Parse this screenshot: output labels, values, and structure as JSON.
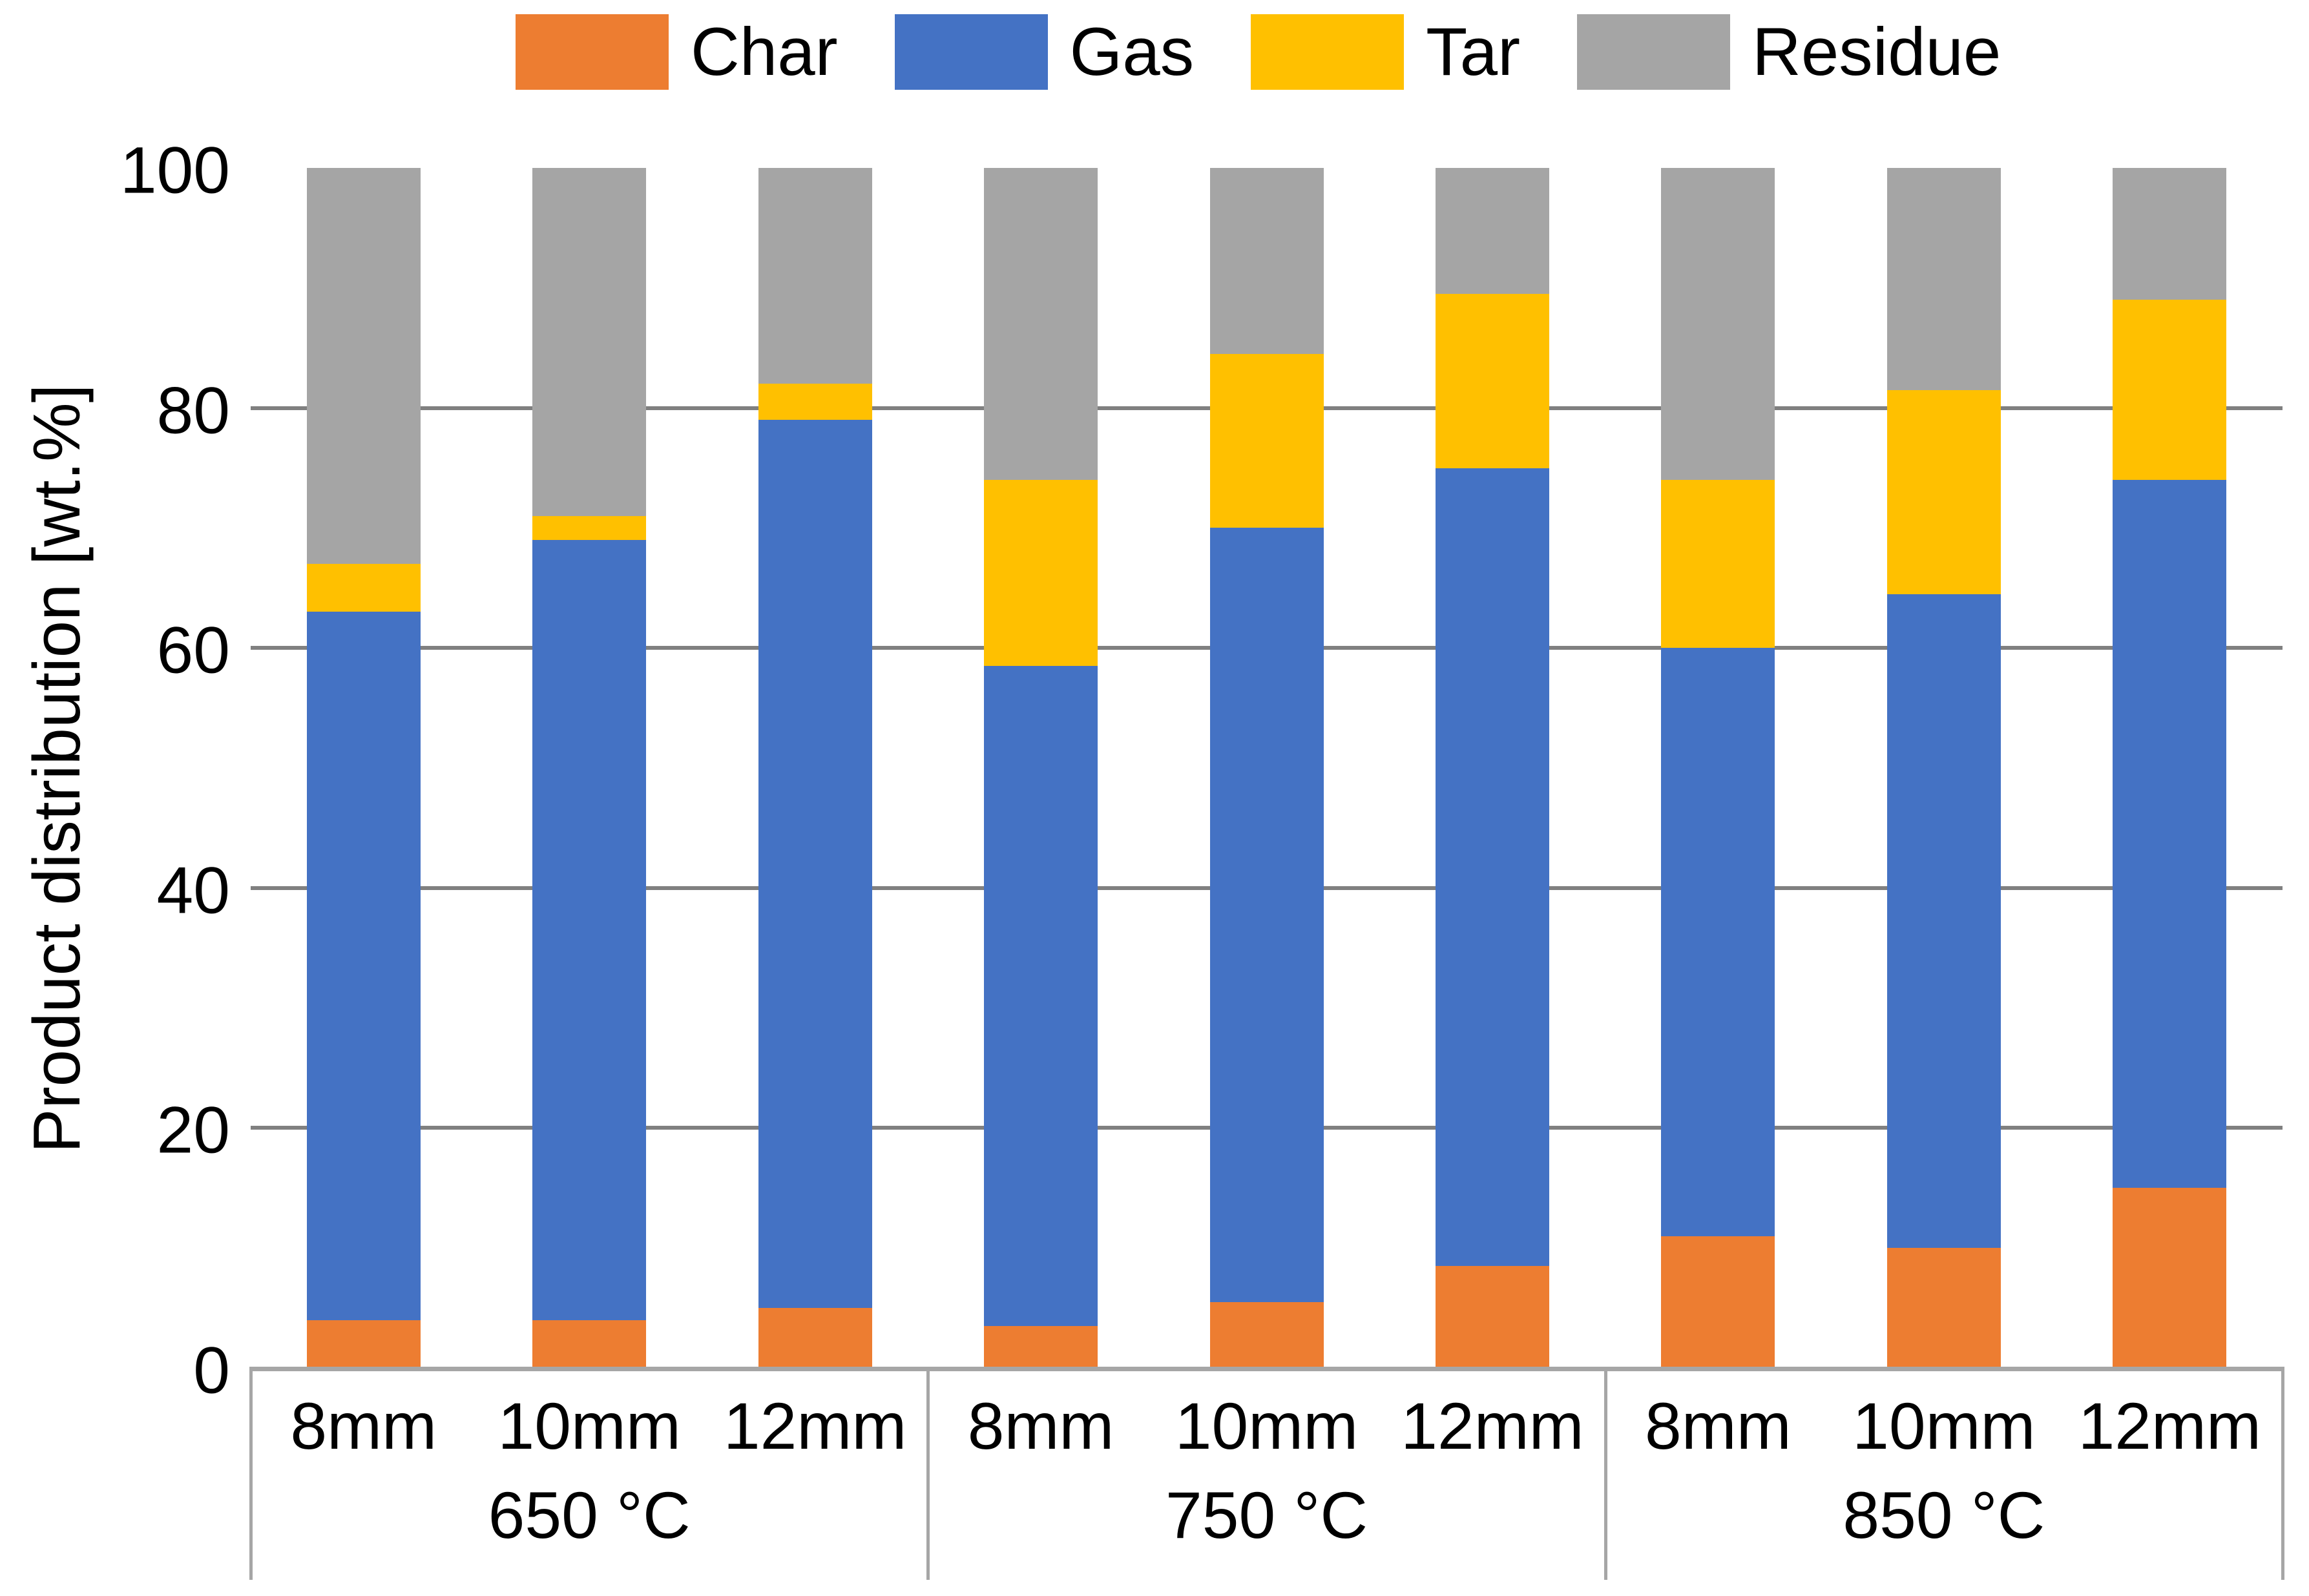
{
  "page": {
    "background": "#ffffff",
    "text_color": "#000000"
  },
  "axis": {
    "y_title": "Product distribution [wt.%]"
  },
  "colors": {
    "gridline": "#808080",
    "axis_line": "#a6a6a6",
    "divider": "#a6a6a6"
  },
  "chart_data": {
    "type": "bar",
    "stacked": true,
    "orientation": "vertical",
    "title": "",
    "xlabel": "",
    "ylabel": "Product distribution [wt.%]",
    "ylim": [
      0,
      100
    ],
    "yticks": [
      0,
      20,
      40,
      60,
      80,
      100
    ],
    "grid": "horizontal gridlines at 20, 40, 60, 80",
    "legend_position": "top",
    "legend_entries": [
      "Char",
      "Gas",
      "Tar",
      "Residue"
    ],
    "groups": [
      {
        "label": "650 °C",
        "categories": [
          "8mm",
          "10mm",
          "12mm"
        ]
      },
      {
        "label": "750 °C",
        "categories": [
          "8mm",
          "10mm",
          "12mm"
        ]
      },
      {
        "label": "850 °C",
        "categories": [
          "8mm",
          "10mm",
          "12mm"
        ]
      }
    ],
    "categories_flat": [
      "8mm",
      "10mm",
      "12mm",
      "8mm",
      "10mm",
      "12mm",
      "8mm",
      "10mm",
      "12mm"
    ],
    "series": [
      {
        "name": "Char",
        "color": "#ED7D31",
        "values": [
          4,
          4,
          5,
          3.5,
          5.5,
          8.5,
          11,
          10,
          15
        ]
      },
      {
        "name": "Gas",
        "color": "#4472C4",
        "values": [
          59,
          65,
          74,
          55,
          64.5,
          66.5,
          49,
          54.5,
          59
        ]
      },
      {
        "name": "Tar",
        "color": "#FFC000",
        "values": [
          4,
          2,
          3,
          15.5,
          14.5,
          14.5,
          14,
          17,
          15
        ]
      },
      {
        "name": "Residue",
        "color": "#A5A5A5",
        "values": [
          33,
          29,
          18,
          26,
          15.5,
          10.5,
          26,
          18.5,
          11
        ]
      }
    ],
    "units": "wt.%"
  }
}
